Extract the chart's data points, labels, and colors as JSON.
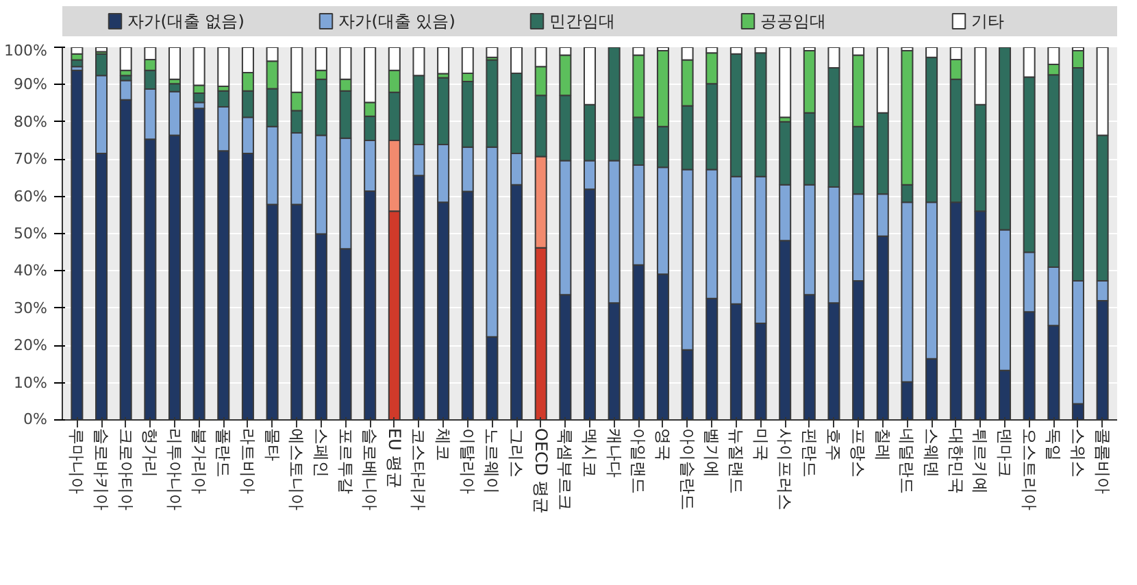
{
  "chart_data": {
    "type": "bar",
    "stacked": true,
    "legend": "top",
    "grid": "y",
    "categories": [
      "루마니아",
      "슬로바키아",
      "크로아티아",
      "헝가리",
      "리투아니아",
      "불가리아",
      "폴란드",
      "라트비아",
      "몰타",
      "에스토니아",
      "스페인",
      "포르투갈",
      "슬로베니아",
      "EU 평균",
      "코스타리카",
      "체코",
      "이탈리아",
      "노르웨이",
      "그리스",
      "OECD 평균",
      "룩셈부르크",
      "멕시코",
      "캐나다",
      "아일랜드",
      "영국",
      "아이슬란드",
      "벨기에",
      "뉴질랜드",
      "미국",
      "사이프러스",
      "핀란드",
      "호주",
      "프랑스",
      "칠레",
      "네덜란드",
      "스웨덴",
      "대한민국",
      "튀르키예",
      "덴마크",
      "오스트리아",
      "독일",
      "스위스",
      "콜롬비아"
    ],
    "ylim": [
      0,
      100
    ],
    "yticks": [
      {
        "value": 0,
        "label": "0%"
      },
      {
        "value": 10,
        "label": "10%"
      },
      {
        "value": 20,
        "label": "20%"
      },
      {
        "value": 30,
        "label": "30%"
      },
      {
        "value": 40,
        "label": "40%"
      },
      {
        "value": 50,
        "label": "50%"
      },
      {
        "value": 60,
        "label": "60%"
      },
      {
        "value": 70,
        "label": "70%"
      },
      {
        "value": 80,
        "label": "80%"
      },
      {
        "value": 90,
        "label": "90%"
      },
      {
        "value": 100,
        "label": "100%"
      }
    ],
    "series": [
      {
        "name": "자가(대출 없음)",
        "color": "#203864",
        "colors": [
          "#203864",
          "#203864",
          "#203864",
          "#203864",
          "#203864",
          "#203864",
          "#203864",
          "#203864",
          "#203864",
          "#203864",
          "#203864",
          "#203864",
          "#203864",
          "#d03a2a",
          "#203864",
          "#203864",
          "#203864",
          "#203864",
          "#203864",
          "#d03a2a",
          "#203864",
          "#203864",
          "#203864",
          "#203864",
          "#203864",
          "#203864",
          "#203864",
          "#203864",
          "#203864",
          "#203864",
          "#203864",
          "#203864",
          "#203864",
          "#203864",
          "#203864",
          "#203864",
          "#203864",
          "#203864",
          "#203864",
          "#203864",
          "#203864",
          "#203864",
          "#203864"
        ],
        "values": [
          93.8,
          71.5,
          85.9,
          75.3,
          76.4,
          83.6,
          72.2,
          71.5,
          57.8,
          57.8,
          49.9,
          45.9,
          61.4,
          56.0,
          65.6,
          58.4,
          61.3,
          22.3,
          63.1,
          46.2,
          33.6,
          61.9,
          31.4,
          41.6,
          39.1,
          18.8,
          32.6,
          31.1,
          25.9,
          48.1,
          33.6,
          31.4,
          37.3,
          49.3,
          10.2,
          16.4,
          58.4,
          56.0,
          13.3,
          29.0,
          25.3,
          4.3,
          32.0
        ]
      },
      {
        "name": "자가(대출 있음)",
        "color": "#7fa6d8",
        "colors": [
          "#7fa6d8",
          "#7fa6d8",
          "#7fa6d8",
          "#7fa6d8",
          "#7fa6d8",
          "#7fa6d8",
          "#7fa6d8",
          "#7fa6d8",
          "#7fa6d8",
          "#7fa6d8",
          "#7fa6d8",
          "#7fa6d8",
          "#7fa6d8",
          "#f28a6e",
          "#7fa6d8",
          "#7fa6d8",
          "#7fa6d8",
          "#7fa6d8",
          "#7fa6d8",
          "#f28a6e",
          "#7fa6d8",
          "#7fa6d8",
          "#7fa6d8",
          "#7fa6d8",
          "#7fa6d8",
          "#7fa6d8",
          "#7fa6d8",
          "#7fa6d8",
          "#7fa6d8",
          "#7fa6d8",
          "#7fa6d8",
          "#7fa6d8",
          "#7fa6d8",
          "#7fa6d8",
          "#7fa6d8",
          "#7fa6d8",
          "#7fa6d8",
          "#7fa6d8",
          "#7fa6d8",
          "#7fa6d8",
          "#7fa6d8",
          "#7fa6d8",
          "#7fa6d8"
        ],
        "values": [
          1.0,
          20.9,
          5.2,
          13.5,
          11.7,
          1.6,
          11.8,
          9.7,
          20.9,
          19.2,
          26.5,
          29.7,
          13.6,
          19.0,
          8.3,
          15.5,
          11.9,
          50.9,
          8.4,
          24.5,
          36.0,
          7.7,
          38.2,
          26.8,
          28.7,
          48.4,
          34.6,
          34.2,
          39.4,
          15.0,
          29.5,
          31.1,
          23.3,
          11.3,
          48.2,
          42.0,
          0,
          0,
          37.7,
          16.0,
          15.7,
          33.0,
          5.3
        ]
      },
      {
        "name": "민간임대",
        "color": "#2f6e5e",
        "values": [
          1.8,
          5.8,
          1.3,
          5.0,
          2.1,
          2.5,
          4.3,
          7.1,
          10.2,
          6.0,
          15.0,
          12.7,
          6.5,
          12.9,
          18.5,
          17.9,
          17.6,
          23.4,
          21.5,
          16.4,
          17.5,
          15.0,
          30.4,
          12.8,
          10.9,
          17.1,
          23.0,
          32.9,
          33.2,
          16.9,
          19.3,
          32.0,
          18.1,
          21.8,
          4.7,
          38.9,
          33.0,
          28.6,
          49.0,
          47.0,
          51.6,
          57.2,
          39.1
        ]
      },
      {
        "name": "공공임대",
        "color": "#5cbf5c",
        "values": [
          1.6,
          0.6,
          1.4,
          2.9,
          1.2,
          2.1,
          1.2,
          4.9,
          7.4,
          4.9,
          2.4,
          3.1,
          3.7,
          5.9,
          0,
          1.1,
          2.2,
          0.7,
          0,
          7.7,
          10.8,
          0,
          0,
          16.7,
          20.4,
          12.3,
          8.3,
          0,
          0,
          1.2,
          16.7,
          0,
          19.2,
          0,
          36.0,
          0,
          5.3,
          0,
          0,
          0,
          2.8,
          4.6,
          0
        ]
      },
      {
        "name": "기타",
        "color": "#ffffff",
        "values": [
          1.8,
          1.2,
          6.2,
          3.3,
          8.6,
          10.2,
          10.5,
          6.8,
          3.7,
          12.1,
          6.2,
          8.6,
          14.8,
          6.2,
          7.6,
          7.1,
          7.0,
          2.7,
          7.0,
          5.2,
          2.1,
          15.4,
          0,
          2.1,
          0.9,
          3.4,
          1.5,
          1.8,
          1.5,
          18.8,
          0.9,
          5.5,
          2.1,
          17.6,
          0.9,
          2.7,
          3.3,
          15.4,
          0,
          8.0,
          4.6,
          0.9,
          23.6
        ]
      }
    ]
  }
}
